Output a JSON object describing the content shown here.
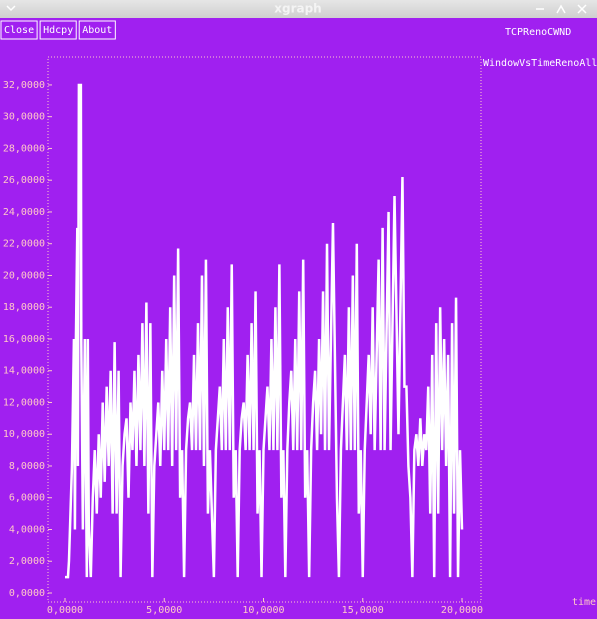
{
  "window": {
    "title": "xgraph",
    "buttons": [
      "Close",
      "Hdcpy",
      "About"
    ]
  },
  "chart_data": {
    "type": "line",
    "title": "TCPRenoCWND",
    "x_label": "time",
    "x": [
      0,
      0.15,
      0.2,
      0.25,
      0.35,
      0.45,
      0.5,
      0.55,
      0.62,
      0.65,
      0.7,
      0.8,
      0.82,
      0.9,
      1.0,
      1.1,
      1.15,
      1.2,
      1.3,
      1.4,
      1.5,
      1.6,
      1.7,
      1.8,
      1.9,
      2.0,
      2.1,
      2.2,
      2.3,
      2.4,
      2.5,
      2.6,
      2.7,
      2.8,
      2.9,
      3.0,
      3.1,
      3.2,
      3.3,
      3.4,
      3.5,
      3.6,
      3.7,
      3.8,
      3.9,
      4.0,
      4.1,
      4.2,
      4.3,
      4.4,
      4.5,
      4.6,
      4.7,
      4.8,
      4.9,
      5.0,
      5.1,
      5.2,
      5.3,
      5.4,
      5.5,
      5.6,
      5.7,
      5.8,
      5.9,
      6.0,
      6.1,
      6.2,
      6.3,
      6.4,
      6.5,
      6.6,
      6.7,
      6.8,
      6.9,
      7.0,
      7.1,
      7.2,
      7.3,
      7.5,
      7.6,
      7.7,
      7.8,
      7.9,
      8.0,
      8.1,
      8.2,
      8.3,
      8.4,
      8.5,
      8.6,
      8.7,
      8.8,
      8.9,
      9.0,
      9.1,
      9.2,
      9.3,
      9.4,
      9.5,
      9.6,
      9.7,
      9.8,
      9.9,
      10.0,
      10.1,
      10.2,
      10.3,
      10.4,
      10.5,
      10.6,
      10.7,
      10.8,
      10.9,
      11.0,
      11.1,
      11.2,
      11.3,
      11.4,
      11.5,
      11.6,
      11.7,
      11.8,
      11.9,
      12.0,
      12.1,
      12.2,
      12.3,
      12.4,
      12.5,
      12.6,
      12.7,
      12.8,
      12.9,
      13.0,
      13.1,
      13.2,
      13.3,
      13.5,
      13.7,
      13.8,
      13.9,
      14.0,
      14.1,
      14.2,
      14.3,
      14.4,
      14.5,
      14.6,
      14.7,
      14.8,
      14.9,
      15.0,
      15.1,
      15.2,
      15.3,
      15.4,
      15.5,
      15.6,
      15.8,
      15.9,
      16.0,
      16.1,
      16.3,
      16.4,
      16.6,
      16.8,
      17.0,
      17.1,
      17.2,
      17.3,
      17.4,
      17.5,
      17.6,
      17.7,
      17.8,
      17.9,
      18.0,
      18.1,
      18.2,
      18.3,
      18.4,
      18.5,
      18.6,
      18.7,
      18.8,
      18.9,
      19.0,
      19.1,
      19.2,
      19.3,
      19.4,
      19.5,
      19.6,
      19.7,
      19.8,
      19.9,
      20.0
    ],
    "series": [
      {
        "name": "WindowVsTimeRenoAll",
        "color": "#ffffff",
        "values": [
          1,
          1,
          2,
          4,
          8,
          16,
          4,
          16,
          23,
          8,
          32,
          32,
          16,
          4,
          16,
          1,
          16,
          4,
          1,
          6,
          9,
          5,
          10,
          6,
          12,
          7,
          13,
          8,
          14,
          5,
          15.8,
          5,
          14,
          1,
          8,
          10,
          11,
          6,
          12,
          9,
          14,
          8,
          15,
          9,
          17,
          8,
          18.3,
          5,
          17,
          1,
          8,
          10,
          12,
          8,
          14,
          9,
          16,
          9,
          18,
          8,
          20,
          9,
          21.7,
          6,
          9,
          1,
          9,
          11,
          12,
          9,
          15,
          9,
          17,
          9,
          20,
          8,
          21,
          5,
          9,
          1,
          9,
          11,
          13,
          9,
          16,
          9,
          18,
          9,
          20.7,
          6,
          9,
          1,
          9,
          11,
          12,
          9,
          15,
          9,
          17,
          9,
          19,
          5,
          9,
          1,
          9,
          11,
          13,
          9,
          16,
          9,
          18,
          9,
          20.7,
          6,
          9,
          1,
          9,
          12,
          14,
          9,
          16,
          9,
          19,
          9,
          21,
          6,
          9,
          1,
          9,
          12,
          14,
          9,
          16,
          10,
          19,
          9,
          22,
          9,
          23.3,
          6,
          1,
          9,
          12,
          15,
          9,
          18,
          9,
          20,
          9,
          22,
          5,
          9,
          1,
          9,
          12,
          15,
          10,
          18,
          9,
          21,
          9,
          23,
          9,
          24,
          9,
          25,
          10,
          26.2,
          13,
          13,
          8,
          6,
          1,
          9,
          10,
          8,
          11,
          8,
          10,
          9,
          13,
          5,
          15,
          1,
          17,
          5,
          18,
          9,
          16,
          8,
          15,
          1,
          17,
          5,
          18.6,
          1,
          9,
          4
        ]
      }
    ],
    "xlim": [
      -0.856,
      20.957
    ],
    "ylim": [
      -0.567,
      33.76
    ],
    "xticks": [
      {
        "value": 0,
        "label": "0,0000"
      },
      {
        "value": 5,
        "label": "5,0000"
      },
      {
        "value": 10,
        "label": "10,0000"
      },
      {
        "value": 15,
        "label": "15,0000"
      },
      {
        "value": 20,
        "label": "20,0000"
      }
    ],
    "yticks": [
      {
        "value": 0,
        "label": "0,0000"
      },
      {
        "value": 2,
        "label": "2,0000"
      },
      {
        "value": 4,
        "label": "4,0000"
      },
      {
        "value": 6,
        "label": "6,0000"
      },
      {
        "value": 8,
        "label": "8,0000"
      },
      {
        "value": 10,
        "label": "10,0000"
      },
      {
        "value": 12,
        "label": "12,0000"
      },
      {
        "value": 14,
        "label": "14,0000"
      },
      {
        "value": 16,
        "label": "16,0000"
      },
      {
        "value": 18,
        "label": "18,0000"
      },
      {
        "value": 20,
        "label": "20,0000"
      },
      {
        "value": 22,
        "label": "22,0000"
      },
      {
        "value": 24,
        "label": "24,0000"
      },
      {
        "value": 26,
        "label": "26,0000"
      },
      {
        "value": 28,
        "label": "28,0000"
      },
      {
        "value": 30,
        "label": "30,0000"
      },
      {
        "value": 32,
        "label": "32,0000"
      }
    ],
    "grid": false
  }
}
